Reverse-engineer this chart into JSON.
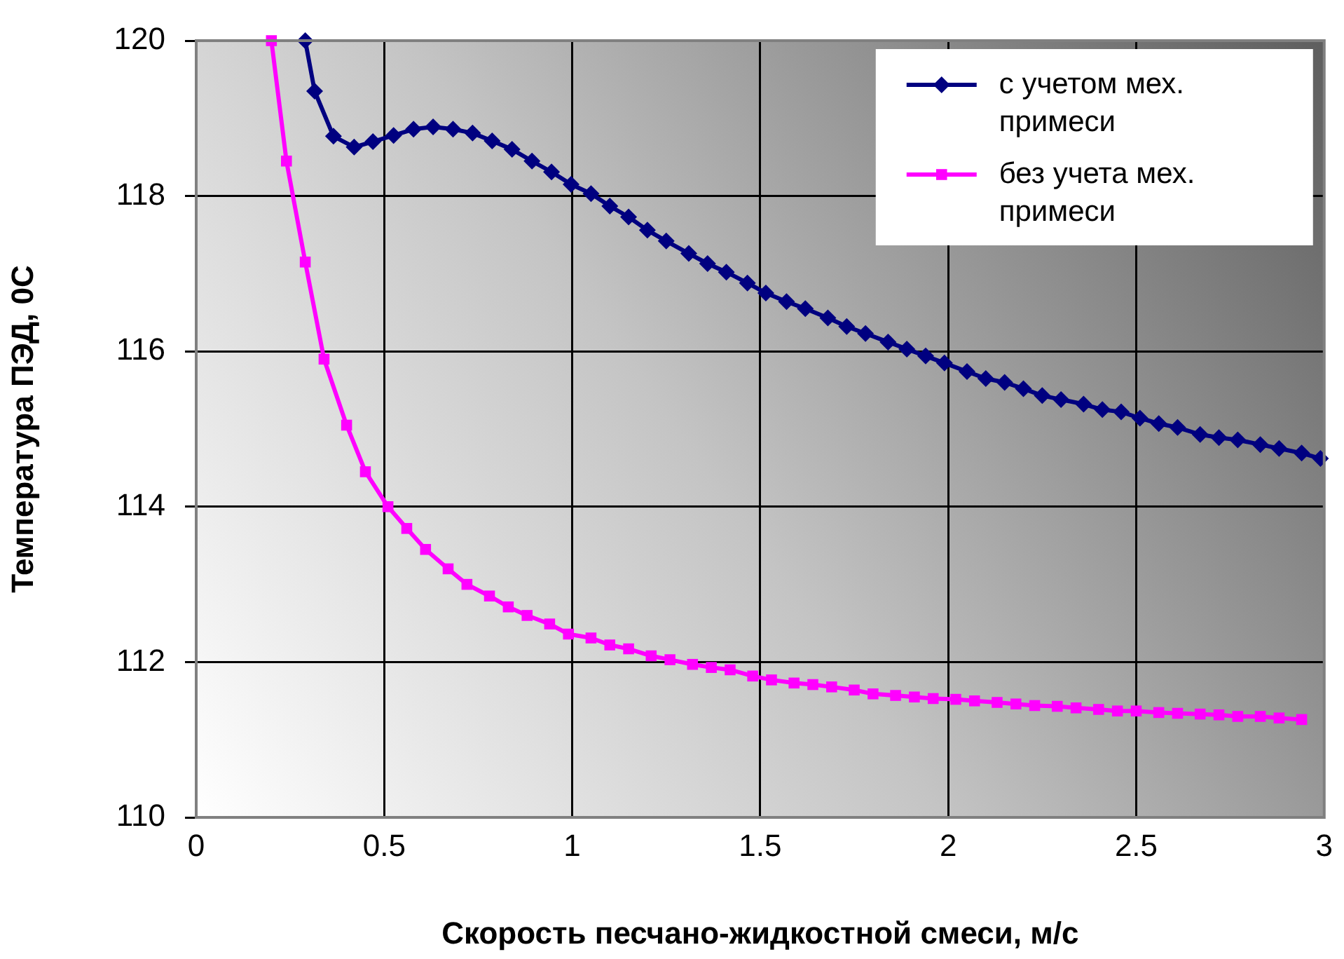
{
  "chart_data": {
    "type": "line",
    "xlabel": "Скорость песчано-жидкостной смеси, м/с",
    "ylabel": "Температура ПЭД, 0С",
    "xlim": [
      0,
      3
    ],
    "xticks": [
      0,
      0.5,
      1,
      1.5,
      2,
      2.5,
      3
    ],
    "ylim": [
      110,
      120
    ],
    "yticks": [
      110,
      112,
      114,
      116,
      118,
      120
    ],
    "grid": true,
    "legend": "top right",
    "line_style": "solid",
    "series": [
      {
        "name": "с учетом мех. примеси",
        "color": "#000080",
        "marker": "diamond",
        "x": [
          0.29,
          0.315,
          0.365,
          0.42,
          0.47,
          0.525,
          0.578,
          0.63,
          0.683,
          0.735,
          0.787,
          0.84,
          0.893,
          0.945,
          0.997,
          1.05,
          1.1,
          1.15,
          1.2,
          1.25,
          1.31,
          1.36,
          1.41,
          1.466,
          1.515,
          1.57,
          1.62,
          1.68,
          1.73,
          1.78,
          1.84,
          1.89,
          1.94,
          1.99,
          2.05,
          2.1,
          2.15,
          2.2,
          2.25,
          2.3,
          2.36,
          2.41,
          2.46,
          2.51,
          2.56,
          2.61,
          2.67,
          2.72,
          2.77,
          2.83,
          2.88,
          2.94,
          2.99
        ],
        "values": [
          120,
          119.35,
          118.77,
          118.63,
          118.7,
          118.78,
          118.86,
          118.89,
          118.86,
          118.81,
          118.71,
          118.6,
          118.45,
          118.31,
          118.15,
          118.03,
          117.87,
          117.73,
          117.56,
          117.42,
          117.26,
          117.13,
          117.02,
          116.88,
          116.75,
          116.64,
          116.55,
          116.43,
          116.32,
          116.23,
          116.12,
          116.03,
          115.94,
          115.85,
          115.74,
          115.65,
          115.6,
          115.52,
          115.43,
          115.38,
          115.32,
          115.25,
          115.22,
          115.14,
          115.07,
          115.02,
          114.93,
          114.89,
          114.86,
          114.8,
          114.75,
          114.69,
          114.62
        ]
      },
      {
        "name": "без учета мех. примеси",
        "color": "#ff00ff",
        "marker": "square",
        "x": [
          0.2,
          0.24,
          0.29,
          0.34,
          0.4,
          0.45,
          0.51,
          0.56,
          0.61,
          0.67,
          0.72,
          0.78,
          0.83,
          0.88,
          0.94,
          0.99,
          1.05,
          1.1,
          1.15,
          1.21,
          1.26,
          1.32,
          1.37,
          1.42,
          1.48,
          1.53,
          1.59,
          1.64,
          1.69,
          1.75,
          1.8,
          1.86,
          1.91,
          1.96,
          2.02,
          2.07,
          2.13,
          2.18,
          2.23,
          2.29,
          2.34,
          2.4,
          2.45,
          2.5,
          2.56,
          2.61,
          2.67,
          2.72,
          2.77,
          2.83,
          2.88,
          2.94
        ],
        "values": [
          120,
          118.45,
          117.15,
          115.9,
          115.05,
          114.45,
          114.0,
          113.72,
          113.45,
          113.2,
          113.0,
          112.85,
          112.71,
          112.6,
          112.49,
          112.36,
          112.31,
          112.22,
          112.17,
          112.08,
          112.03,
          111.97,
          111.93,
          111.9,
          111.82,
          111.77,
          111.73,
          111.71,
          111.68,
          111.64,
          111.59,
          111.57,
          111.55,
          111.53,
          111.52,
          111.5,
          111.48,
          111.46,
          111.44,
          111.43,
          111.41,
          111.39,
          111.37,
          111.37,
          111.35,
          111.34,
          111.33,
          111.32,
          111.3,
          111.3,
          111.28,
          111.26
        ]
      }
    ]
  }
}
